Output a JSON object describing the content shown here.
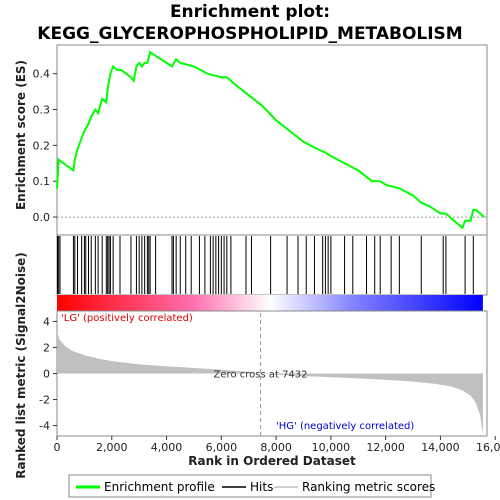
{
  "chart_data": {
    "type": "line",
    "title_line1": "Enrichment plot:",
    "title_line2": "KEGG_GLYCEROPHOSPHOLIPID_METABOLISM",
    "es_panel": {
      "ylabel": "Enrichment score (ES)",
      "ylim": [
        -0.05,
        0.48
      ],
      "yticks": [
        0.0,
        0.1,
        0.2,
        0.3,
        0.4
      ],
      "ytick_labels": [
        "0.0",
        "0.1",
        "0.2",
        "0.3",
        "0.4"
      ],
      "series_color": "#00ff00",
      "profile": [
        [
          0,
          0.08
        ],
        [
          60,
          0.16
        ],
        [
          600,
          0.13
        ],
        [
          650,
          0.16
        ],
        [
          750,
          0.19
        ],
        [
          900,
          0.22
        ],
        [
          1000,
          0.24
        ],
        [
          1150,
          0.26
        ],
        [
          1250,
          0.28
        ],
        [
          1400,
          0.3
        ],
        [
          1500,
          0.29
        ],
        [
          1650,
          0.33
        ],
        [
          1800,
          0.32
        ],
        [
          1850,
          0.36
        ],
        [
          1950,
          0.4
        ],
        [
          2050,
          0.42
        ],
        [
          2200,
          0.41
        ],
        [
          2350,
          0.41
        ],
        [
          2700,
          0.39
        ],
        [
          2800,
          0.38
        ],
        [
          2900,
          0.42
        ],
        [
          3000,
          0.43
        ],
        [
          3100,
          0.42
        ],
        [
          3200,
          0.43
        ],
        [
          3300,
          0.43
        ],
        [
          3400,
          0.46
        ],
        [
          3600,
          0.45
        ],
        [
          4000,
          0.43
        ],
        [
          4200,
          0.42
        ],
        [
          4350,
          0.44
        ],
        [
          4500,
          0.43
        ],
        [
          5000,
          0.42
        ],
        [
          5500,
          0.4
        ],
        [
          6000,
          0.39
        ],
        [
          6200,
          0.39
        ],
        [
          6500,
          0.37
        ],
        [
          7000,
          0.34
        ],
        [
          7500,
          0.31
        ],
        [
          8000,
          0.27
        ],
        [
          8500,
          0.24
        ],
        [
          9000,
          0.21
        ],
        [
          9500,
          0.19
        ],
        [
          9800,
          0.18
        ],
        [
          10000,
          0.17
        ],
        [
          10500,
          0.15
        ],
        [
          11000,
          0.13
        ],
        [
          11500,
          0.1
        ],
        [
          11800,
          0.1
        ],
        [
          12000,
          0.09
        ],
        [
          12500,
          0.08
        ],
        [
          13000,
          0.06
        ],
        [
          13300,
          0.04
        ],
        [
          13600,
          0.03
        ],
        [
          14000,
          0.01
        ],
        [
          14200,
          0.01
        ],
        [
          14500,
          -0.01
        ],
        [
          14800,
          -0.03
        ],
        [
          14900,
          -0.01
        ],
        [
          15100,
          -0.01
        ],
        [
          15200,
          0.02
        ],
        [
          15300,
          0.02
        ],
        [
          15600,
          0.0
        ]
      ]
    },
    "hits": [
      20,
      60,
      110,
      600,
      650,
      750,
      900,
      1000,
      1050,
      1150,
      1250,
      1400,
      1500,
      1650,
      1800,
      1850,
      1900,
      1950,
      2050,
      2300,
      2700,
      2900,
      3000,
      3100,
      3200,
      3300,
      3350,
      3400,
      3600,
      4200,
      4250,
      4350,
      4500,
      4700,
      4900,
      5200,
      5400,
      5600,
      5700,
      5800,
      5900,
      6000,
      6100,
      6200,
      6350,
      6900,
      7100,
      7800,
      8400,
      8800,
      9100,
      9400,
      9700,
      9800,
      9900,
      10000,
      10500,
      10800,
      11300,
      11600,
      11800,
      12200,
      12500,
      13300,
      14100,
      14200,
      14900,
      15200
    ],
    "gradient_colors": [
      "#ff0000",
      "#ff70b0",
      "#ffffff",
      "#8080ff",
      "#0000ff"
    ],
    "x": {
      "xlabel": "Rank in Ordered Dataset",
      "xlim": [
        0,
        15700
      ],
      "xticks": [
        0,
        2000,
        4000,
        6000,
        8000,
        10000,
        12000,
        14000,
        16000
      ],
      "xtick_labels": [
        "0",
        "2,000",
        "4,000",
        "6,000",
        "8,000",
        "10,000",
        "12,000",
        "14,000",
        "16,000"
      ]
    },
    "metric_panel": {
      "ylabel": "Ranked list metric (Signal2Noise)",
      "ylim": [
        -4.8,
        4.8
      ],
      "yticks": [
        4,
        2,
        0,
        -2,
        -4
      ],
      "ytick_labels": [
        "4",
        "2",
        "0",
        "-2",
        "-4"
      ],
      "curve": [
        [
          0,
          3.2
        ],
        [
          100,
          2.6
        ],
        [
          300,
          2.1
        ],
        [
          600,
          1.7
        ],
        [
          1000,
          1.4
        ],
        [
          1500,
          1.15
        ],
        [
          2000,
          0.95
        ],
        [
          3000,
          0.7
        ],
        [
          4000,
          0.55
        ],
        [
          5000,
          0.42
        ],
        [
          6000,
          0.3
        ],
        [
          7000,
          0.12
        ],
        [
          7432,
          0.0
        ],
        [
          8000,
          -0.1
        ],
        [
          9000,
          -0.2
        ],
        [
          10000,
          -0.28
        ],
        [
          11000,
          -0.38
        ],
        [
          12000,
          -0.48
        ],
        [
          13000,
          -0.62
        ],
        [
          13800,
          -0.8
        ],
        [
          14400,
          -1.0
        ],
        [
          14800,
          -1.3
        ],
        [
          15100,
          -1.7
        ],
        [
          15300,
          -2.3
        ],
        [
          15450,
          -3.2
        ],
        [
          15550,
          -4.7
        ]
      ],
      "zero_cross": 7432,
      "zero_cross_label": "Zero cross at 7432",
      "pos_label": "'LG' (positively correlated)",
      "neg_label": "'HG' (negatively correlated)"
    },
    "legend": [
      {
        "label": "Enrichment profile",
        "color": "#00ff00"
      },
      {
        "label": "Hits",
        "color": "#000000"
      },
      {
        "label": "Ranking metric scores",
        "color": "#c0c0c0"
      }
    ]
  }
}
